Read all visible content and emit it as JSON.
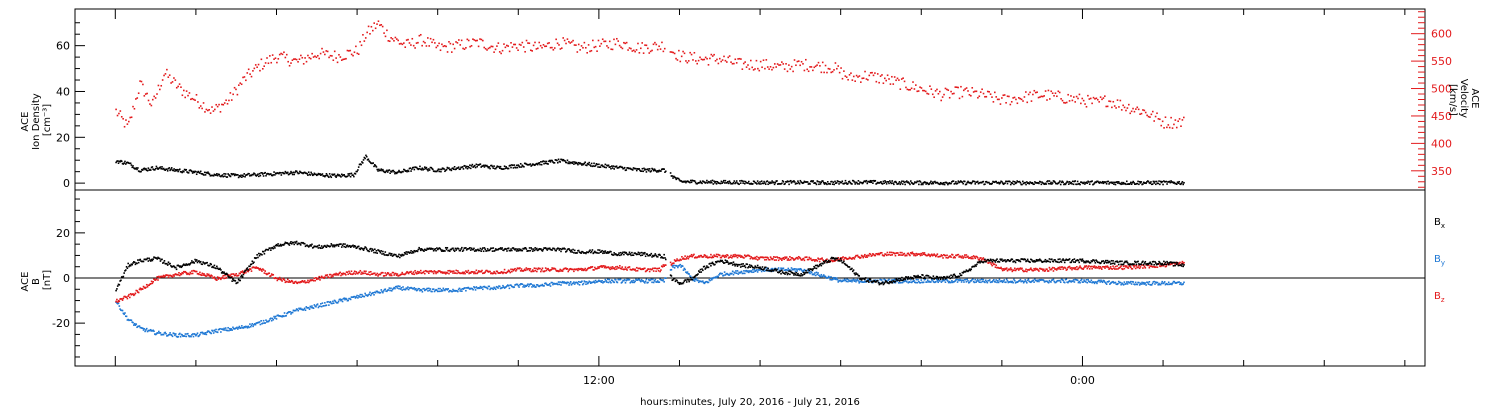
{
  "chart_data": [
    {
      "type": "scatter",
      "panel": "top",
      "ylabel_lines": [
        "ACE",
        "Ion Density",
        "[cm⁻³]"
      ],
      "ylim": [
        -3,
        76
      ],
      "yticks": [
        "0",
        "20",
        "40",
        "60"
      ],
      "y2label_lines": [
        "ACE",
        "Velocity",
        "[km/s]"
      ],
      "y2lim": [
        315,
        645
      ],
      "y2ticks": [
        "350",
        "400",
        "450",
        "500",
        "550",
        "600"
      ],
      "series": [
        {
          "axis": "left",
          "color": "#000000",
          "x": [
            0.0,
            0.3,
            0.6,
            1.0,
            1.5,
            2.0,
            2.5,
            3.0,
            3.5,
            4.0,
            4.5,
            5.0,
            5.5,
            5.9,
            6.2,
            6.5,
            7.0,
            7.5,
            8.0,
            8.5,
            9.0,
            9.5,
            10.0,
            10.5,
            11.0,
            11.5,
            12.0,
            12.5,
            13.0,
            13.6,
            14.0,
            15.0,
            16.0,
            17.0,
            17.8,
            18.3,
            19.0,
            20.0,
            21.0,
            22.0,
            23.0,
            24.0,
            25.0,
            26.0,
            26.5
          ],
          "y": [
            10,
            9,
            6,
            7,
            6,
            5,
            4,
            3.5,
            4,
            4.5,
            5,
            4,
            3.5,
            4,
            12,
            6,
            5,
            7,
            6,
            7,
            8,
            7,
            8,
            9,
            10,
            9,
            8,
            7,
            6,
            6,
            1,
            0.7,
            0.6,
            0.6,
            0.5,
            0.8,
            0.6,
            0.5,
            0.5,
            0.5,
            0.5,
            0.5,
            0.5,
            0.5,
            0.5
          ]
        },
        {
          "axis": "right",
          "color": "#e31a1c",
          "x": [
            0.0,
            0.3,
            0.6,
            0.9,
            1.2,
            1.6,
            2.0,
            2.4,
            2.8,
            3.2,
            3.6,
            4.0,
            4.5,
            5.0,
            5.5,
            6.0,
            6.2,
            6.5,
            6.8,
            7.2,
            7.6,
            8.0,
            8.5,
            9.0,
            9.5,
            10.0,
            10.5,
            11.0,
            11.5,
            12.0,
            12.5,
            13.0,
            13.6,
            14.0,
            14.5,
            15.0,
            15.5,
            16.0,
            16.5,
            17.0,
            17.8,
            18.2,
            18.6,
            19.0,
            19.5,
            20.0,
            20.5,
            21.0,
            21.5,
            22.0,
            22.5,
            23.0,
            23.5,
            24.0,
            24.3,
            24.6,
            25.0,
            25.5,
            26.0,
            26.5
          ],
          "y": [
            460,
            430,
            510,
            470,
            530,
            500,
            480,
            460,
            480,
            520,
            545,
            560,
            550,
            565,
            560,
            570,
            600,
            620,
            595,
            580,
            590,
            575,
            580,
            585,
            575,
            580,
            575,
            585,
            575,
            580,
            585,
            575,
            580,
            560,
            555,
            555,
            545,
            545,
            540,
            545,
            540,
            520,
            525,
            520,
            510,
            500,
            490,
            495,
            490,
            480,
            485,
            490,
            485,
            480,
            475,
            480,
            470,
            460,
            440,
            440
          ]
        }
      ]
    },
    {
      "type": "scatter",
      "panel": "bottom",
      "ylabel_lines": [
        "ACE",
        "B",
        "[nT]"
      ],
      "ylim": [
        -39,
        39
      ],
      "yticks": [
        "-20",
        "0",
        "20"
      ],
      "zero_line": true,
      "series": [
        {
          "name": "Bx",
          "color": "#000000",
          "x": [
            0.0,
            0.3,
            0.6,
            1.0,
            1.5,
            2.0,
            2.5,
            3.0,
            3.5,
            4.0,
            4.5,
            5.0,
            5.5,
            6.0,
            6.5,
            7.0,
            7.5,
            8.0,
            8.5,
            9.0,
            9.5,
            10.0,
            10.5,
            11.0,
            11.5,
            12.0,
            12.5,
            13.0,
            13.5,
            13.6,
            13.8,
            14.0,
            14.3,
            14.6,
            15.0,
            15.5,
            16.0,
            16.5,
            17.0,
            17.8,
            18.0,
            18.5,
            19.0,
            19.5,
            20.0,
            20.5,
            21.0,
            21.5,
            22.0,
            23.0,
            24.0,
            25.0,
            26.0,
            26.5
          ],
          "y": [
            -5,
            6,
            8,
            9,
            5,
            8,
            5,
            -2,
            10,
            15,
            16,
            14,
            15,
            14,
            12,
            10,
            13,
            13,
            13,
            13,
            13,
            13,
            13,
            13,
            12,
            12,
            11,
            11,
            10,
            10,
            0,
            -2,
            0,
            5,
            8,
            6,
            5,
            3,
            2,
            9,
            8,
            0,
            -2,
            0,
            1,
            0,
            2,
            8,
            8,
            8,
            8,
            7,
            7,
            6
          ]
        },
        {
          "name": "By",
          "color": "#1f78d4",
          "x": [
            0.0,
            0.3,
            0.6,
            1.0,
            1.5,
            2.0,
            2.5,
            3.0,
            3.5,
            4.0,
            4.5,
            5.0,
            5.5,
            6.0,
            6.5,
            7.0,
            7.5,
            8.0,
            8.5,
            9.0,
            9.5,
            10.0,
            10.5,
            11.0,
            11.5,
            12.0,
            12.5,
            13.0,
            13.5,
            13.6,
            13.8,
            14.0,
            14.3,
            14.6,
            15.0,
            15.5,
            16.0,
            16.5,
            17.0,
            17.8,
            18.0,
            18.5,
            19.0,
            19.5,
            20.0,
            21.0,
            22.0,
            23.0,
            24.0,
            25.0,
            26.0,
            26.5
          ],
          "y": [
            -10,
            -18,
            -22,
            -24,
            -25,
            -25,
            -23,
            -22,
            -20,
            -17,
            -14,
            -12,
            -10,
            -8,
            -6,
            -4,
            -5,
            -5,
            -5,
            -4,
            -4,
            -3,
            -3,
            -2,
            -2,
            -1,
            -1,
            -1,
            -1,
            -1,
            5,
            6,
            0,
            -2,
            2,
            3,
            4,
            4,
            4,
            0,
            -1,
            -1,
            -1,
            -1,
            -1,
            -1,
            -1,
            -1,
            -1,
            -2,
            -2,
            -2
          ]
        },
        {
          "name": "Bz",
          "color": "#e31a1c",
          "x": [
            0.0,
            0.3,
            0.6,
            1.0,
            1.5,
            2.0,
            2.5,
            3.0,
            3.5,
            4.0,
            4.5,
            5.0,
            5.5,
            6.0,
            6.5,
            7.0,
            7.5,
            8.0,
            8.5,
            9.0,
            9.5,
            10.0,
            10.5,
            11.0,
            11.5,
            12.0,
            12.5,
            13.0,
            13.5,
            13.6,
            13.8,
            14.0,
            14.3,
            14.6,
            15.0,
            15.5,
            16.0,
            16.5,
            17.0,
            17.8,
            18.0,
            18.5,
            19.0,
            19.5,
            20.0,
            20.5,
            21.0,
            21.5,
            22.0,
            23.0,
            24.0,
            25.0,
            26.0,
            26.5
          ],
          "y": [
            -10,
            -8,
            -5,
            0,
            2,
            3,
            0,
            2,
            5,
            0,
            -2,
            0,
            2,
            3,
            2,
            2,
            3,
            3,
            3,
            3,
            3,
            4,
            4,
            4,
            4,
            5,
            5,
            4,
            4,
            6,
            7,
            9,
            10,
            10,
            10,
            10,
            9,
            9,
            9,
            8,
            9,
            10,
            11,
            11,
            11,
            10,
            10,
            9,
            4,
            4,
            5,
            5,
            6,
            7
          ]
        }
      ],
      "legend": [
        {
          "base": "B",
          "sub": "x",
          "color": "#000000"
        },
        {
          "base": "B",
          "sub": "y",
          "color": "#1f78d4"
        },
        {
          "base": "B",
          "sub": "z",
          "color": "#e31a1c"
        }
      ]
    }
  ],
  "x_axis": {
    "range_hours": [
      -1.0,
      32.5
    ],
    "tick_labels": [
      {
        "text": "12:00",
        "x": 12
      },
      {
        "text": "0:00",
        "x": 24
      }
    ],
    "label": "hours:minutes, July 20, 2016 - July 21, 2016"
  },
  "style": {
    "black": "#000000",
    "red": "#e31a1c",
    "blue": "#1f78d4"
  }
}
